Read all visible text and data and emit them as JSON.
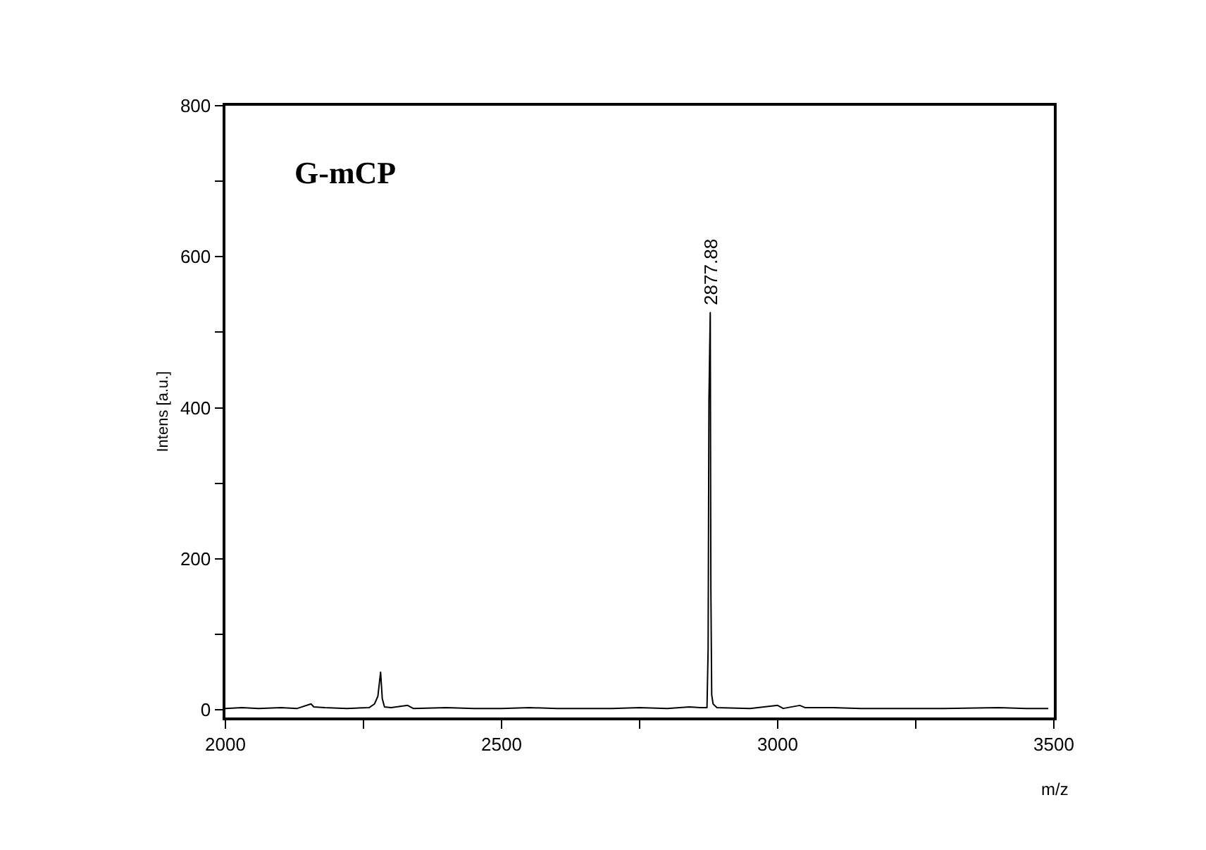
{
  "chart_data": {
    "type": "line",
    "xlabel": "m/z",
    "ylabel": "Intens [a.u.]",
    "xlim": [
      2000,
      3500
    ],
    "ylim": [
      -10,
      800
    ],
    "xticks": [
      2000,
      {
        "value": 2250,
        "label": null
      },
      2500,
      {
        "value": 2750,
        "label": null
      },
      3000,
      {
        "value": 3250,
        "label": null
      },
      3500
    ],
    "yticks": [
      0,
      {
        "value": 100,
        "label": null
      },
      200,
      {
        "value": 300,
        "label": null
      },
      400,
      {
        "value": 500,
        "label": null
      },
      600,
      {
        "value": 700,
        "label": null
      },
      800
    ],
    "annotations": [
      "G-mCP",
      {
        "text": "2877.88",
        "x": 2877.88,
        "y": 526
      }
    ],
    "series": [
      {
        "color": "#000000",
        "x": [
          2000,
          2030,
          2060,
          2100,
          2130,
          2155,
          2160,
          2180,
          2220,
          2260,
          2270,
          2276,
          2281,
          2284,
          2288,
          2300,
          2330,
          2340,
          2400,
          2450,
          2500,
          2550,
          2600,
          2650,
          2700,
          2750,
          2800,
          2840,
          2860,
          2872,
          2874,
          2875.5,
          2877.88,
          2879,
          2880.5,
          2883,
          2890,
          2950,
          3000,
          3010,
          3040,
          3050,
          3100,
          3150,
          3200,
          3300,
          3400,
          3450,
          3490
        ],
        "values": [
          2,
          3,
          2,
          3,
          2,
          8,
          4,
          3,
          2,
          3,
          8,
          18,
          50,
          15,
          4,
          3,
          6,
          2,
          3,
          2,
          2,
          3,
          2,
          2,
          2,
          3,
          2,
          4,
          3,
          3,
          80,
          410,
          526,
          160,
          20,
          8,
          3,
          2,
          6,
          2,
          6,
          3,
          3,
          2,
          2,
          2,
          3,
          2,
          2
        ]
      }
    ]
  }
}
